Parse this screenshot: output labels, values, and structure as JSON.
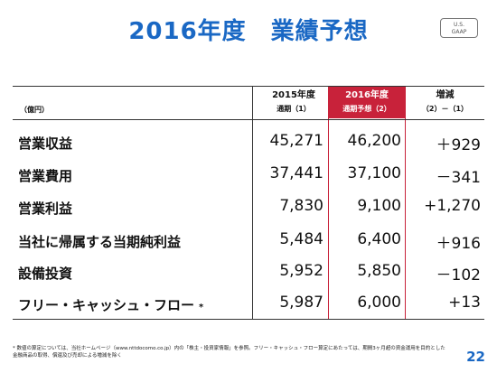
{
  "title": "2016年度　業績予想",
  "badge": {
    "line1": "U.S.",
    "line2": "GAAP"
  },
  "unit": "（億円）",
  "columns": [
    {
      "line1": "2015年度",
      "line2": "通期（1）"
    },
    {
      "line1": "2016年度",
      "line2": "通期予想（2）"
    },
    {
      "line1": "増減",
      "line2": "（2）－（1）"
    }
  ],
  "rows": [
    {
      "label": "営業収益",
      "note": "",
      "fy2015": "45,271",
      "fy2016": "46,200",
      "change": "＋929"
    },
    {
      "label": "営業費用",
      "note": "",
      "fy2015": "37,441",
      "fy2016": "37,100",
      "change": "－341"
    },
    {
      "label": "営業利益",
      "note": "",
      "fy2015": "7,830",
      "fy2016": "9,100",
      "change": "+1,270"
    },
    {
      "label": "当社に帰属する当期純利益",
      "note": "",
      "fy2015": "5,484",
      "fy2016": "6,400",
      "change": "＋916"
    },
    {
      "label": "設備投資",
      "note": "",
      "fy2015": "5,952",
      "fy2016": "5,850",
      "change": "－102"
    },
    {
      "label": "フリー・キャッシュ・フロー",
      "note": "*",
      "fy2015": "5,987",
      "fy2016": "6,000",
      "change": "+13"
    }
  ],
  "footnote": "* 数値の算定については、当社ホームページ（www.nttdocomo.co.jp）内の「株主・投資家情報」を参照。フリー・キャッシュ・フロー算定にあたっては、期間3ヶ月超の資金運用を目的とした金融商品の取得、償還及び売却による増減を除く",
  "page_number": "22",
  "colors": {
    "accent": "#1a68c4",
    "highlight": "#c8223a"
  }
}
